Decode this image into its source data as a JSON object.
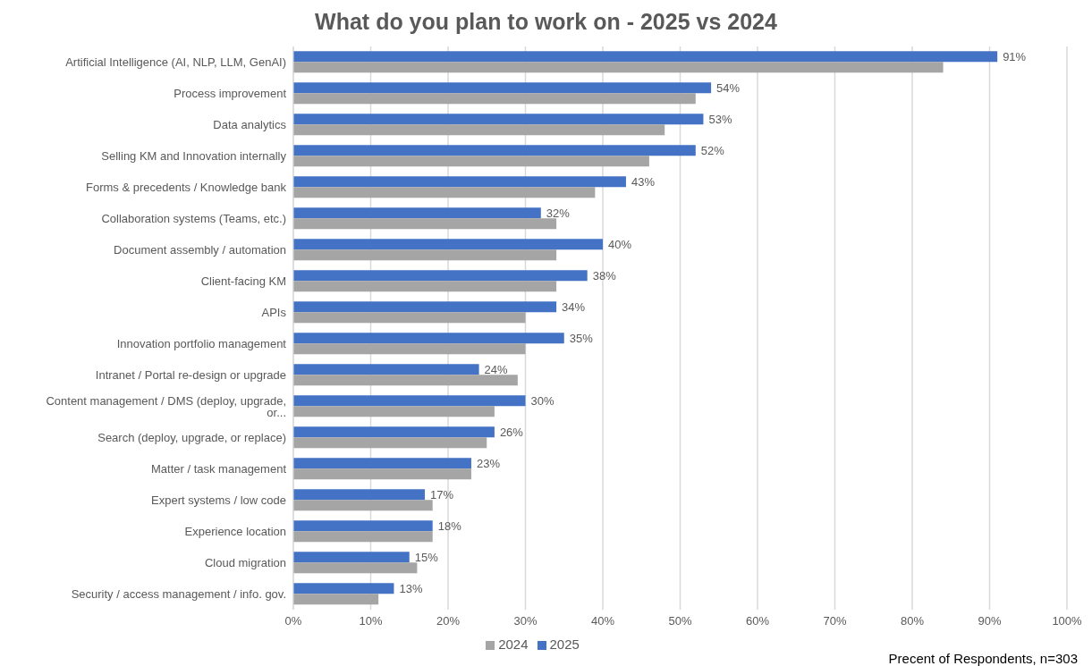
{
  "chart_data": {
    "type": "bar",
    "orientation": "horizontal",
    "title": "What do you plan to work on - 2025 vs 2024",
    "categories": [
      "Artificial Intelligence (AI, NLP, LLM, GenAI)",
      "Process improvement",
      "Data analytics",
      "Selling KM and Innovation internally",
      "Forms & precedents / Knowledge bank",
      "Collaboration systems (Teams, etc.)",
      "Document assembly / automation",
      "Client-facing KM",
      "APIs",
      "Innovation portfolio management",
      "Intranet / Portal re-design or upgrade",
      "Content management / DMS (deploy, upgrade, or...",
      "Search (deploy, upgrade, or replace)",
      "Matter / task management",
      "Expert systems / low code",
      "Experience location",
      "Cloud migration",
      "Security / access management / info. gov."
    ],
    "series": [
      {
        "name": "2025",
        "color": "#4472c4",
        "values": [
          91,
          54,
          53,
          52,
          43,
          32,
          40,
          38,
          34,
          35,
          24,
          30,
          26,
          23,
          17,
          18,
          15,
          13
        ],
        "value_labels": [
          "91%",
          "54%",
          "53%",
          "52%",
          "43%",
          "32%",
          "40%",
          "38%",
          "34%",
          "35%",
          "24%",
          "30%",
          "26%",
          "23%",
          "17%",
          "18%",
          "15%",
          "13%"
        ]
      },
      {
        "name": "2024",
        "color": "#a5a5a5",
        "values": [
          84,
          52,
          48,
          46,
          39,
          34,
          34,
          34,
          30,
          30,
          29,
          26,
          25,
          23,
          18,
          18,
          16,
          11
        ]
      }
    ],
    "xlim": [
      0,
      100
    ],
    "xticks": [
      {
        "value": 0,
        "label": "0%"
      },
      {
        "value": 10,
        "label": "10%"
      },
      {
        "value": 20,
        "label": "20%"
      },
      {
        "value": 30,
        "label": "30%"
      },
      {
        "value": 40,
        "label": "40%"
      },
      {
        "value": 50,
        "label": "50%"
      },
      {
        "value": 60,
        "label": "60%"
      },
      {
        "value": 70,
        "label": "70%"
      },
      {
        "value": 80,
        "label": "80%"
      },
      {
        "value": 90,
        "label": "90%"
      },
      {
        "value": 100,
        "label": "100%"
      }
    ],
    "grid": "x",
    "legend": "bottom",
    "annotations": [
      "Precent of Respondents,  n=303"
    ]
  }
}
